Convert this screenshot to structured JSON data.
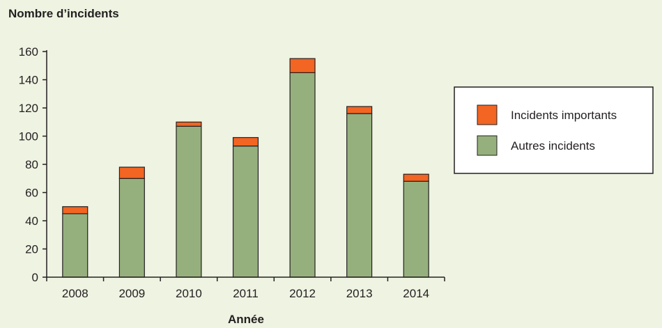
{
  "chart_data": {
    "type": "bar",
    "stacked": true,
    "ylabel": "Nombre d’incidents",
    "xlabel": "Année",
    "categories": [
      "2008",
      "2009",
      "2010",
      "2011",
      "2012",
      "2013",
      "2014"
    ],
    "series": [
      {
        "name": "Autres incidents",
        "values": [
          45,
          70,
          107,
          93,
          145,
          116,
          68
        ],
        "color": "#95b07d"
      },
      {
        "name": "Incidents importants",
        "values": [
          5,
          8,
          3,
          6,
          10,
          5,
          5
        ],
        "color": "#f26522"
      }
    ],
    "ylim": [
      0,
      160
    ],
    "yticks": [
      "0",
      "20",
      "40",
      "60",
      "80",
      "100",
      "120",
      "140",
      "160"
    ],
    "grid": false,
    "legend_position": "right",
    "legend": [
      "Incidents importants",
      "Autres incidents"
    ],
    "background_color": "#eef3e2",
    "stroke_color": "#231f20"
  }
}
